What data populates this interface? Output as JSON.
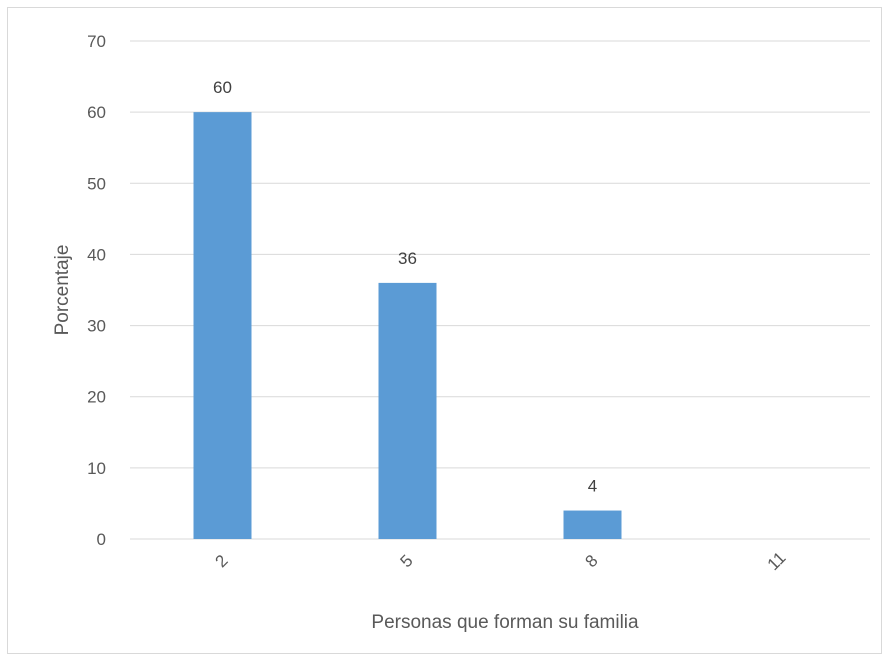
{
  "chart_data": {
    "type": "bar",
    "categories": [
      "2",
      "5",
      "8",
      "11"
    ],
    "values": [
      60,
      36,
      4,
      0
    ],
    "data_labels": [
      "60",
      "36",
      "4",
      ""
    ],
    "title": "",
    "xlabel": "Personas que forman su familia",
    "ylabel": "Porcentaje",
    "ylim": [
      0,
      70
    ],
    "yticks": [
      "0",
      "10",
      "20",
      "30",
      "40",
      "50",
      "60",
      "70"
    ],
    "grid": true,
    "legend": "none",
    "colors": {
      "bar": "#5b9bd5",
      "grid": "#d9d9d9",
      "text": "#595959"
    }
  }
}
